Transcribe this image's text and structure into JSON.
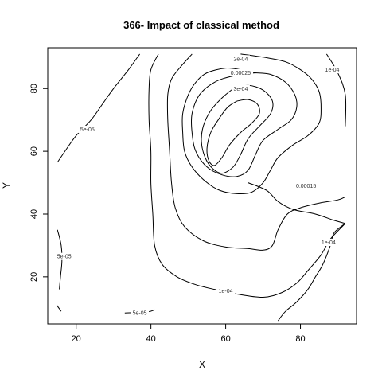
{
  "chart_data": {
    "type": "contour",
    "title": "366- Impact of classical method",
    "xlabel": "X",
    "ylabel": "Y",
    "xlim": [
      12.4,
      95
    ],
    "ylim": [
      5,
      93
    ],
    "x_ticks": [
      20,
      40,
      60,
      80
    ],
    "y_ticks": [
      20,
      40,
      60,
      80
    ],
    "grid": false,
    "levels": [
      {
        "label": "5e-05",
        "paths": [
          [
            [
              15,
              56.5
            ],
            [
              17,
              60
            ],
            [
              20,
              65
            ],
            [
              24,
              70
            ],
            [
              27,
              75
            ],
            [
              30,
              80
            ],
            [
              34,
              86
            ],
            [
              37,
              91
            ]
          ],
          [
            [
              15,
              35
            ],
            [
              16,
              30
            ],
            [
              16.2,
              25
            ],
            [
              15.8,
              20
            ],
            [
              15.5,
              16
            ]
          ],
          [
            [
              14.8,
              11
            ],
            [
              16,
              9
            ]
          ],
          [
            [
              33,
              8.5
            ],
            [
              39,
              8.8
            ],
            [
              41,
              9.5
            ]
          ]
        ]
      },
      {
        "label": "1e-04",
        "paths": [
          [
            [
              42,
              91
            ],
            [
              40,
              86
            ],
            [
              39.5,
              80
            ],
            [
              39.5,
              70
            ],
            [
              40,
              60
            ],
            [
              40,
              50
            ],
            [
              40.5,
              40
            ],
            [
              41,
              30
            ],
            [
              43,
              24
            ],
            [
              47,
              20
            ],
            [
              52,
              17.5
            ],
            [
              57,
              16
            ],
            [
              63,
              14.5
            ],
            [
              70,
              13.5
            ],
            [
              75,
              15
            ],
            [
              79,
              18
            ],
            [
              82,
              22
            ],
            [
              85.5,
              27
            ],
            [
              88,
              32
            ],
            [
              92,
              37
            ]
          ],
          [
            [
              87,
              91
            ],
            [
              90,
              85
            ],
            [
              92,
              78
            ],
            [
              92,
              68
            ]
          ]
        ]
      },
      {
        "label": "1e-04",
        "paths": [
          [
            [
              74,
              6
            ],
            [
              76,
              9
            ],
            [
              79,
              12
            ],
            [
              82,
              16
            ],
            [
              84,
              20
            ],
            [
              86,
              24
            ],
            [
              88,
              30
            ],
            [
              89,
              34
            ],
            [
              92,
              37
            ]
          ]
        ]
      },
      {
        "label": "2e-04",
        "paths": [
          [
            [
              51,
              91
            ],
            [
              48,
              87
            ],
            [
              45.5,
              83
            ],
            [
              44.5,
              78
            ],
            [
              44.5,
              70
            ],
            [
              45,
              60
            ],
            [
              45.5,
              50
            ],
            [
              46.5,
              42
            ],
            [
              49,
              36
            ],
            [
              54,
              31.5
            ],
            [
              60,
              29.5
            ],
            [
              66,
              29
            ],
            [
              70,
              28.5
            ],
            [
              72.5,
              30
            ],
            [
              74,
              35
            ],
            [
              76.5,
              40
            ],
            [
              80,
              42
            ],
            [
              85,
              43.5
            ],
            [
              90,
              44.5
            ],
            [
              92,
              45.5
            ]
          ],
          [
            [
              64,
              91
            ],
            [
              70,
              90
            ],
            [
              76,
              88.5
            ],
            [
              80,
              86
            ],
            [
              83,
              83
            ],
            [
              85,
              79
            ],
            [
              85.5,
              74
            ],
            [
              85,
              69
            ],
            [
              82,
              65
            ],
            [
              78,
              62
            ],
            [
              74,
              58
            ],
            [
              72,
              54
            ],
            [
              70,
              50
            ],
            [
              67,
              47
            ],
            [
              63,
              46.5
            ],
            [
              58.5,
              47.5
            ],
            [
              54.5,
              50.5
            ],
            [
              51,
              55
            ],
            [
              49,
              60
            ],
            [
              48.5,
              66
            ],
            [
              48.5,
              72
            ],
            [
              50,
              78
            ],
            [
              52,
              82
            ],
            [
              55,
              85
            ],
            [
              60,
              86.5
            ],
            [
              64,
              86
            ],
            [
              68,
              85
            ]
          ]
        ]
      },
      {
        "label": "0.00015",
        "paths": [
          [
            [
              68,
              85
            ],
            [
              72,
              84.5
            ],
            [
              76,
              82
            ],
            [
              78.5,
              78
            ],
            [
              79,
              74
            ],
            [
              77.5,
              70
            ],
            [
              74,
              67
            ],
            [
              70,
              63.5
            ],
            [
              68,
              59
            ],
            [
              66,
              54
            ],
            [
              63,
              52
            ],
            [
              59,
              52.5
            ],
            [
              55,
              55
            ],
            [
              52,
              60
            ],
            [
              51,
              66
            ],
            [
              51,
              72
            ],
            [
              53,
              78
            ],
            [
              57,
              82
            ],
            [
              62,
              84
            ],
            [
              68,
              85
            ]
          ],
          [
            [
              66,
              50
            ],
            [
              71,
              47.5
            ],
            [
              74,
              44
            ],
            [
              78,
              41.5
            ],
            [
              84,
              40
            ],
            [
              89,
              38
            ],
            [
              92,
              37
            ]
          ]
        ]
      },
      {
        "label": "0.00025",
        "paths": [
          [
            [
              62,
              80
            ],
            [
              66,
              81
            ],
            [
              70,
              79.5
            ],
            [
              72.5,
              76
            ],
            [
              72,
              72
            ],
            [
              69,
              68
            ],
            [
              66,
              64
            ],
            [
              64,
              59
            ],
            [
              62,
              55
            ],
            [
              59,
              53
            ],
            [
              56.5,
              54.5
            ],
            [
              54.5,
              58
            ],
            [
              53.5,
              63
            ],
            [
              54,
              68
            ],
            [
              56,
              73
            ],
            [
              59,
              77
            ],
            [
              62,
              80
            ]
          ]
        ]
      },
      {
        "label": "3e-04",
        "paths": [
          [
            [
              63,
              76
            ],
            [
              66,
              76.5
            ],
            [
              68.5,
              75
            ],
            [
              69,
              72
            ],
            [
              67,
              69
            ],
            [
              64,
              66
            ],
            [
              61,
              62
            ],
            [
              59,
              58
            ],
            [
              57,
              55.5
            ],
            [
              55.5,
              57
            ],
            [
              55,
              61
            ],
            [
              56,
              66
            ],
            [
              58,
              70
            ],
            [
              60.5,
              74
            ],
            [
              63,
              76
            ]
          ]
        ]
      }
    ],
    "level_labels": [
      {
        "text": "5e-05",
        "x": 23,
        "y": 67
      },
      {
        "text": "5e-05",
        "x": 16.8,
        "y": 26.5
      },
      {
        "text": "5e-05",
        "x": 37,
        "y": 8.6
      },
      {
        "text": "1e-04",
        "x": 60,
        "y": 15.5
      },
      {
        "text": "1e-04",
        "x": 88.5,
        "y": 86
      },
      {
        "text": "1e-04",
        "x": 87.5,
        "y": 31
      },
      {
        "text": "2e-04",
        "x": 64,
        "y": 89.5
      },
      {
        "text": "0.00025",
        "x": 64,
        "y": 85
      },
      {
        "text": "3e-04",
        "x": 64,
        "y": 80
      },
      {
        "text": "0.00015",
        "x": 81.5,
        "y": 49
      }
    ]
  }
}
